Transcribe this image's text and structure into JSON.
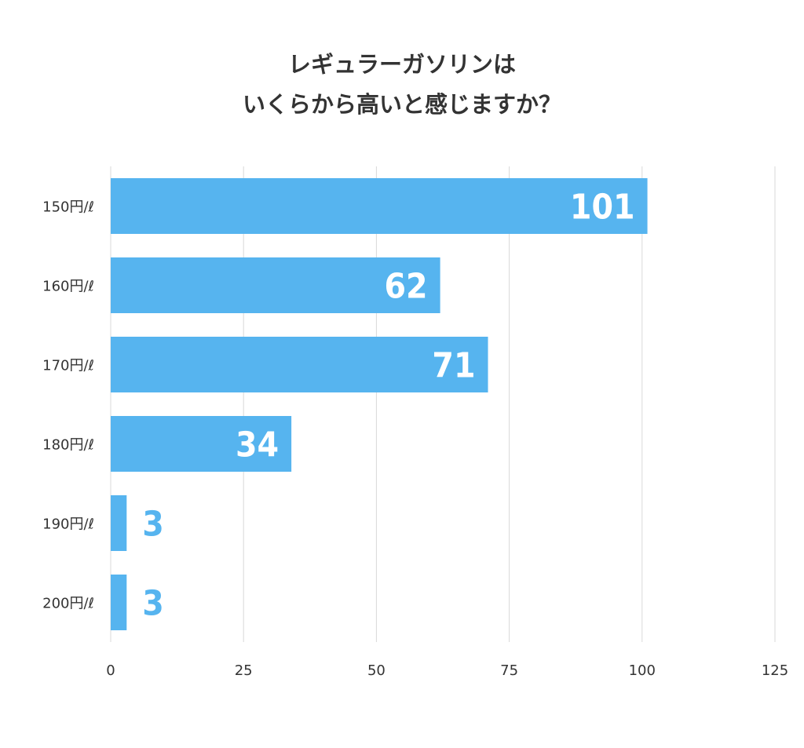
{
  "chart_data": {
    "type": "bar",
    "orientation": "horizontal",
    "title_lines": [
      "レギュラーガソリンは",
      "いくらから高いと感じますか？"
    ],
    "categories": [
      "150円/ℓ",
      "160円/ℓ",
      "170円/ℓ",
      "180円/ℓ",
      "190円/ℓ",
      "200円/ℓ"
    ],
    "values": [
      101,
      62,
      71,
      34,
      3,
      3
    ],
    "xlim": [
      0,
      125
    ],
    "xticks": [
      0,
      25,
      50,
      75,
      100,
      125
    ],
    "xlabel": "",
    "ylabel": "",
    "grid": true,
    "bar_color": "#56b4ef"
  }
}
